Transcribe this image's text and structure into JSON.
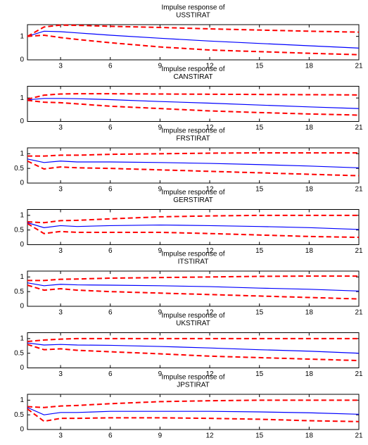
{
  "chart_data": [
    {
      "type": "line",
      "title": "Impulse response of",
      "subtitle": "USSTIRAT",
      "x": [
        1,
        2,
        3,
        4,
        6,
        9,
        12,
        15,
        18,
        21
      ],
      "xlim": [
        1,
        21
      ],
      "xticks": [
        3,
        6,
        9,
        12,
        15,
        18,
        21
      ],
      "ylim": [
        0,
        1.5
      ],
      "yticks": [
        0,
        1
      ],
      "series": [
        {
          "color": "#0000ff",
          "line_style": "solid",
          "values": [
            1.0,
            1.22,
            1.2,
            1.15,
            1.05,
            0.92,
            0.8,
            0.7,
            0.6,
            0.5
          ]
        },
        {
          "color": "#ff0000",
          "line_style": "dashed",
          "values": [
            1.0,
            1.4,
            1.48,
            1.47,
            1.43,
            1.38,
            1.32,
            1.27,
            1.22,
            1.18
          ]
        },
        {
          "color": "#ff0000",
          "line_style": "dashed",
          "values": [
            1.0,
            1.05,
            0.95,
            0.87,
            0.73,
            0.55,
            0.42,
            0.35,
            0.28,
            0.22
          ]
        }
      ]
    },
    {
      "type": "line",
      "title": "Impulse response of",
      "subtitle": "CANSTIRAT",
      "x": [
        1,
        2,
        3,
        4,
        6,
        9,
        12,
        15,
        18,
        21
      ],
      "xlim": [
        1,
        21
      ],
      "xticks": [
        3,
        6,
        9,
        12,
        15,
        18,
        21
      ],
      "ylim": [
        0,
        1.5
      ],
      "yticks": [
        0,
        1
      ],
      "series": [
        {
          "color": "#0000ff",
          "line_style": "solid",
          "values": [
            0.92,
            0.98,
            0.98,
            0.97,
            0.93,
            0.85,
            0.78,
            0.7,
            0.62,
            0.55
          ]
        },
        {
          "color": "#ff0000",
          "line_style": "dashed",
          "values": [
            0.95,
            1.12,
            1.17,
            1.18,
            1.18,
            1.17,
            1.16,
            1.15,
            1.14,
            1.13
          ]
        },
        {
          "color": "#ff0000",
          "line_style": "dashed",
          "values": [
            0.9,
            0.82,
            0.8,
            0.75,
            0.65,
            0.55,
            0.45,
            0.38,
            0.32,
            0.27
          ]
        }
      ]
    },
    {
      "type": "line",
      "title": "Impulse response of",
      "subtitle": "FRSTIRAT",
      "x": [
        1,
        2,
        3,
        4,
        6,
        9,
        12,
        15,
        18,
        21
      ],
      "xlim": [
        1,
        21
      ],
      "xticks": [
        3,
        6,
        9,
        12,
        15,
        18,
        21
      ],
      "ylim": [
        0,
        1.2
      ],
      "yticks": [
        0,
        0.5,
        1
      ],
      "series": [
        {
          "color": "#0000ff",
          "line_style": "solid",
          "values": [
            0.82,
            0.7,
            0.75,
            0.72,
            0.72,
            0.7,
            0.67,
            0.63,
            0.58,
            0.52
          ]
        },
        {
          "color": "#ff0000",
          "line_style": "dashed",
          "values": [
            0.92,
            0.92,
            0.95,
            0.95,
            0.98,
            1.0,
            1.02,
            1.03,
            1.03,
            1.03
          ]
        },
        {
          "color": "#ff0000",
          "line_style": "dashed",
          "values": [
            0.75,
            0.48,
            0.55,
            0.52,
            0.5,
            0.45,
            0.4,
            0.35,
            0.3,
            0.25
          ]
        }
      ]
    },
    {
      "type": "line",
      "title": "Impulse response of",
      "subtitle": "GERSTIRAT",
      "x": [
        1,
        2,
        3,
        4,
        6,
        9,
        12,
        15,
        18,
        21
      ],
      "xlim": [
        1,
        21
      ],
      "xticks": [
        3,
        6,
        9,
        12,
        15,
        18,
        21
      ],
      "ylim": [
        0,
        1.2
      ],
      "yticks": [
        0,
        0.5,
        1
      ],
      "series": [
        {
          "color": "#0000ff",
          "line_style": "solid",
          "values": [
            0.75,
            0.58,
            0.65,
            0.62,
            0.65,
            0.67,
            0.65,
            0.62,
            0.58,
            0.52
          ]
        },
        {
          "color": "#ff0000",
          "line_style": "dashed",
          "values": [
            0.78,
            0.75,
            0.82,
            0.83,
            0.88,
            0.95,
            0.98,
            1.0,
            1.0,
            1.0
          ]
        },
        {
          "color": "#ff0000",
          "line_style": "dashed",
          "values": [
            0.72,
            0.38,
            0.45,
            0.42,
            0.42,
            0.42,
            0.38,
            0.33,
            0.28,
            0.25
          ]
        }
      ]
    },
    {
      "type": "line",
      "title": "Impulse response of",
      "subtitle": "ITSTIRAT",
      "x": [
        1,
        2,
        3,
        4,
        6,
        9,
        12,
        15,
        18,
        21
      ],
      "xlim": [
        1,
        21
      ],
      "xticks": [
        3,
        6,
        9,
        12,
        15,
        18,
        21
      ],
      "ylim": [
        0,
        1.2
      ],
      "yticks": [
        0,
        0.5,
        1
      ],
      "series": [
        {
          "color": "#0000ff",
          "line_style": "solid",
          "values": [
            0.8,
            0.7,
            0.75,
            0.73,
            0.72,
            0.7,
            0.67,
            0.62,
            0.58,
            0.52
          ]
        },
        {
          "color": "#ff0000",
          "line_style": "dashed",
          "values": [
            0.88,
            0.88,
            0.92,
            0.93,
            0.96,
            0.98,
            1.0,
            1.02,
            1.03,
            1.03
          ]
        },
        {
          "color": "#ff0000",
          "line_style": "dashed",
          "values": [
            0.72,
            0.55,
            0.6,
            0.55,
            0.5,
            0.45,
            0.4,
            0.35,
            0.3,
            0.25
          ]
        }
      ]
    },
    {
      "type": "line",
      "title": "Impulse response of",
      "subtitle": "UKSTIRAT",
      "x": [
        1,
        2,
        3,
        4,
        6,
        9,
        12,
        15,
        18,
        21
      ],
      "xlim": [
        1,
        21
      ],
      "xticks": [
        3,
        6,
        9,
        12,
        15,
        18,
        21
      ],
      "ylim": [
        0,
        1.2
      ],
      "yticks": [
        0,
        0.5,
        1
      ],
      "series": [
        {
          "color": "#0000ff",
          "line_style": "solid",
          "values": [
            0.85,
            0.78,
            0.8,
            0.78,
            0.77,
            0.73,
            0.68,
            0.62,
            0.57,
            0.5
          ]
        },
        {
          "color": "#ff0000",
          "line_style": "dashed",
          "values": [
            0.9,
            0.95,
            0.98,
            1.0,
            1.0,
            1.0,
            1.0,
            1.0,
            1.0,
            1.0
          ]
        },
        {
          "color": "#ff0000",
          "line_style": "dashed",
          "values": [
            0.8,
            0.62,
            0.65,
            0.6,
            0.55,
            0.48,
            0.4,
            0.35,
            0.3,
            0.25
          ]
        }
      ]
    },
    {
      "type": "line",
      "title": "Impulse response of",
      "subtitle": "JPSTIRAT",
      "x": [
        1,
        2,
        3,
        4,
        6,
        9,
        12,
        15,
        18,
        21
      ],
      "xlim": [
        1,
        21
      ],
      "xticks": [
        3,
        6,
        9,
        12,
        15,
        18,
        21
      ],
      "ylim": [
        0,
        1.2
      ],
      "yticks": [
        0,
        0.5,
        1
      ],
      "series": [
        {
          "color": "#0000ff",
          "line_style": "solid",
          "values": [
            0.75,
            0.5,
            0.58,
            0.58,
            0.62,
            0.62,
            0.62,
            0.6,
            0.57,
            0.52
          ]
        },
        {
          "color": "#ff0000",
          "line_style": "dashed",
          "values": [
            0.78,
            0.75,
            0.8,
            0.82,
            0.88,
            0.95,
            0.98,
            1.0,
            1.0,
            1.0
          ]
        },
        {
          "color": "#ff0000",
          "line_style": "dashed",
          "values": [
            0.7,
            0.28,
            0.38,
            0.38,
            0.4,
            0.4,
            0.38,
            0.35,
            0.3,
            0.27
          ]
        }
      ]
    }
  ]
}
